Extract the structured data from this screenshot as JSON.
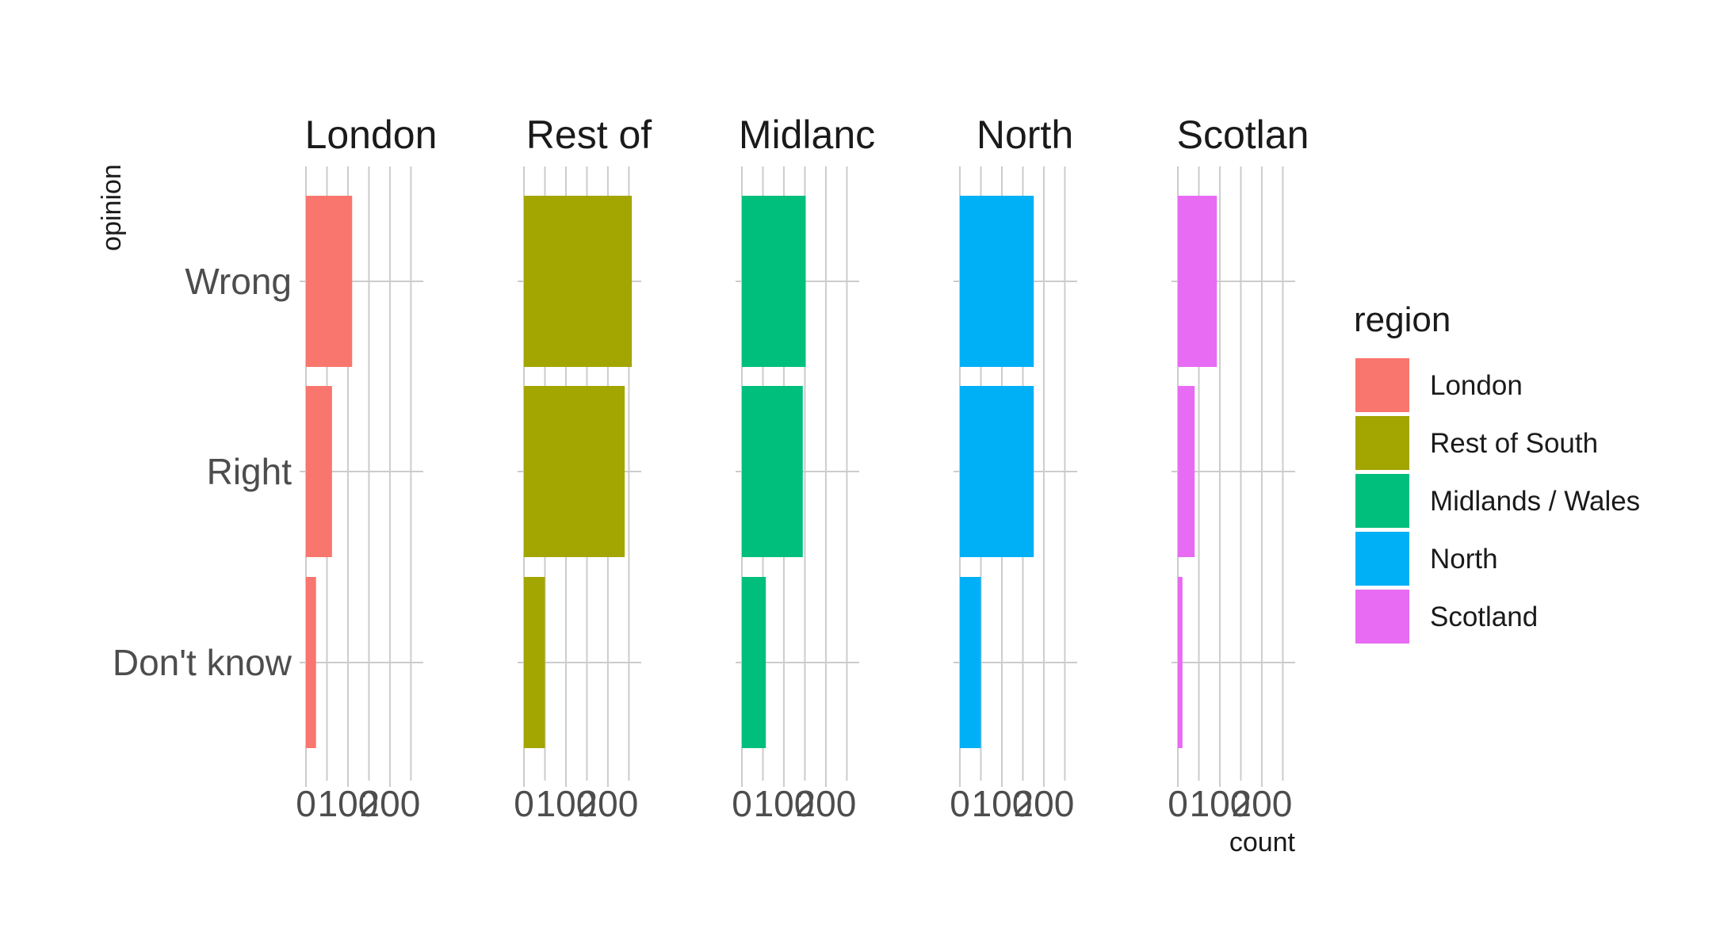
{
  "chart_data": {
    "type": "bar",
    "orientation": "horizontal",
    "facet_by": "region",
    "facets": [
      "London",
      "Rest of South",
      "Midlands / Wales",
      "North",
      "Scotland"
    ],
    "facet_labels_visible": [
      "London",
      "Rest of",
      "Midlanc",
      "North",
      "Scotlan"
    ],
    "categories": [
      "Wrong",
      "Right",
      "Don't know"
    ],
    "series": [
      {
        "name": "London",
        "color": "#F8766D",
        "values": [
          110,
          62,
          24
        ]
      },
      {
        "name": "Rest of South",
        "color": "#A3A500",
        "values": [
          257,
          240,
          50
        ]
      },
      {
        "name": "Midlands / Wales",
        "color": "#00BF7D",
        "values": [
          152,
          145,
          57
        ]
      },
      {
        "name": "North",
        "color": "#00B0F6",
        "values": [
          176,
          176,
          50
        ]
      },
      {
        "name": "Scotland",
        "color": "#E76BF3",
        "values": [
          93,
          40,
          11
        ]
      }
    ],
    "xlabel": "count",
    "ylabel": "opinion",
    "xlim": [
      0,
      270
    ],
    "x_ticks": [
      0,
      100,
      200
    ],
    "x_tick_labels": [
      "0",
      "100",
      "200"
    ],
    "grid": true,
    "legend": {
      "title": "region",
      "placement": "right",
      "entries": [
        "London",
        "Rest of South",
        "Midlands / Wales",
        "North",
        "Scotland"
      ]
    }
  }
}
